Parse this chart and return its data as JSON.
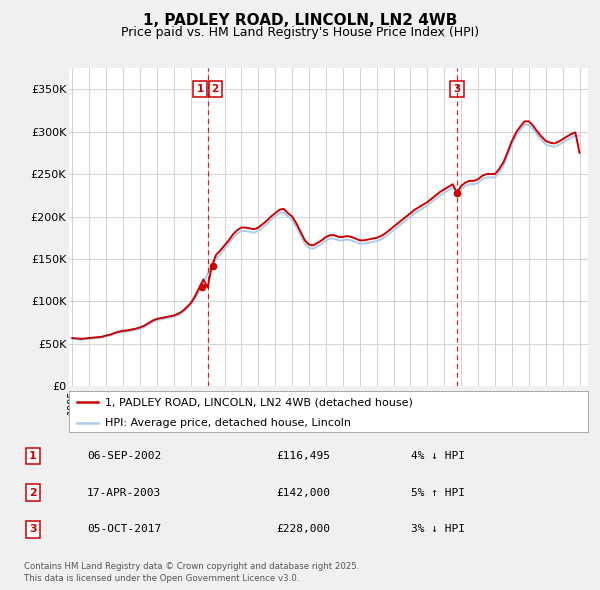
{
  "title": "1, PADLEY ROAD, LINCOLN, LN2 4WB",
  "subtitle": "Price paid vs. HM Land Registry's House Price Index (HPI)",
  "title_fontsize": 11,
  "subtitle_fontsize": 9,
  "bg_color": "#f0f0f0",
  "plot_bg_color": "#ffffff",
  "grid_color": "#cccccc",
  "red_line_color": "#cc0000",
  "blue_line_color": "#aaccee",
  "sale_marker_color": "#cc0000",
  "transaction_line_color": "#cc0000",
  "legend_label_red": "1, PADLEY ROAD, LINCOLN, LN2 4WB (detached house)",
  "legend_label_blue": "HPI: Average price, detached house, Lincoln",
  "transactions": [
    {
      "num": 1,
      "date": "06-SEP-2002",
      "price": 116495,
      "pct": "4%",
      "dir": "↓",
      "year_x": 2002.69
    },
    {
      "num": 2,
      "date": "17-APR-2003",
      "price": 142000,
      "pct": "5%",
      "dir": "↑",
      "year_x": 2003.3
    },
    {
      "num": 3,
      "date": "05-OCT-2017",
      "price": 228000,
      "pct": "3%",
      "dir": "↓",
      "year_x": 2017.75
    }
  ],
  "vlines": [
    {
      "x": 2003.0,
      "nums": [
        1,
        2
      ]
    },
    {
      "x": 2017.75,
      "nums": [
        3
      ]
    }
  ],
  "ylim": [
    0,
    375000
  ],
  "xlim_start": 1994.8,
  "xlim_end": 2025.5,
  "yticks": [
    0,
    50000,
    100000,
    150000,
    200000,
    250000,
    300000,
    350000
  ],
  "ytick_labels": [
    "£0",
    "£50K",
    "£100K",
    "£150K",
    "£200K",
    "£250K",
    "£300K",
    "£350K"
  ],
  "xtick_years": [
    1995,
    1996,
    1997,
    1998,
    1999,
    2000,
    2001,
    2002,
    2003,
    2004,
    2005,
    2006,
    2007,
    2008,
    2009,
    2010,
    2011,
    2012,
    2013,
    2014,
    2015,
    2016,
    2017,
    2018,
    2019,
    2020,
    2021,
    2022,
    2023,
    2024,
    2025
  ],
  "footer": "Contains HM Land Registry data © Crown copyright and database right 2025.\nThis data is licensed under the Open Government Licence v3.0.",
  "hpi_data": {
    "years": [
      1995.0,
      1995.25,
      1995.5,
      1995.75,
      1996.0,
      1996.25,
      1996.5,
      1996.75,
      1997.0,
      1997.25,
      1997.5,
      1997.75,
      1998.0,
      1998.25,
      1998.5,
      1998.75,
      1999.0,
      1999.25,
      1999.5,
      1999.75,
      2000.0,
      2000.25,
      2000.5,
      2000.75,
      2001.0,
      2001.25,
      2001.5,
      2001.75,
      2002.0,
      2002.25,
      2002.5,
      2002.75,
      2003.0,
      2003.25,
      2003.5,
      2003.75,
      2004.0,
      2004.25,
      2004.5,
      2004.75,
      2005.0,
      2005.25,
      2005.5,
      2005.75,
      2006.0,
      2006.25,
      2006.5,
      2006.75,
      2007.0,
      2007.25,
      2007.5,
      2007.75,
      2008.0,
      2008.25,
      2008.5,
      2008.75,
      2009.0,
      2009.25,
      2009.5,
      2009.75,
      2010.0,
      2010.25,
      2010.5,
      2010.75,
      2011.0,
      2011.25,
      2011.5,
      2011.75,
      2012.0,
      2012.25,
      2012.5,
      2012.75,
      2013.0,
      2013.25,
      2013.5,
      2013.75,
      2014.0,
      2014.25,
      2014.5,
      2014.75,
      2015.0,
      2015.25,
      2015.5,
      2015.75,
      2016.0,
      2016.25,
      2016.5,
      2016.75,
      2017.0,
      2017.25,
      2017.5,
      2017.75,
      2018.0,
      2018.25,
      2018.5,
      2018.75,
      2019.0,
      2019.25,
      2019.5,
      2019.75,
      2020.0,
      2020.25,
      2020.5,
      2020.75,
      2021.0,
      2021.25,
      2021.5,
      2021.75,
      2022.0,
      2022.25,
      2022.5,
      2022.75,
      2023.0,
      2023.25,
      2023.5,
      2023.75,
      2024.0,
      2024.25,
      2024.5,
      2024.75,
      2025.0
    ],
    "hpi_values": [
      56000,
      55500,
      55000,
      55500,
      56000,
      56500,
      57000,
      57500,
      59000,
      60000,
      62000,
      63000,
      64000,
      64500,
      65500,
      66500,
      68000,
      70000,
      73000,
      76000,
      78000,
      79000,
      80000,
      81000,
      82000,
      84000,
      87000,
      91000,
      96000,
      103000,
      112000,
      122000,
      133000,
      142000,
      150000,
      156000,
      162000,
      168000,
      175000,
      180000,
      183000,
      183000,
      182000,
      181000,
      183000,
      187000,
      191000,
      196000,
      200000,
      204000,
      205000,
      200000,
      196000,
      188000,
      178000,
      168000,
      163000,
      162000,
      165000,
      168000,
      172000,
      174000,
      174000,
      172000,
      172000,
      173000,
      172000,
      170000,
      168000,
      168000,
      169000,
      170000,
      171000,
      173000,
      176000,
      180000,
      184000,
      188000,
      192000,
      196000,
      200000,
      204000,
      207000,
      210000,
      213000,
      217000,
      221000,
      225000,
      228000,
      231000,
      234000,
      228000,
      232000,
      236000,
      238000,
      238000,
      240000,
      244000,
      246000,
      246000,
      246000,
      252000,
      260000,
      272000,
      285000,
      295000,
      302000,
      308000,
      308000,
      303000,
      296000,
      290000,
      285000,
      283000,
      282000,
      284000,
      287000,
      290000,
      293000,
      295000,
      295000
    ],
    "red_values": [
      57000,
      56500,
      56000,
      56500,
      57000,
      57500,
      58000,
      58500,
      60000,
      61000,
      63000,
      64500,
      65500,
      66000,
      67000,
      68000,
      69500,
      71500,
      74500,
      77500,
      79500,
      80500,
      81500,
      82500,
      83500,
      85500,
      88500,
      93000,
      98000,
      106000,
      116000,
      126000,
      116495,
      142000,
      155000,
      160000,
      166000,
      172000,
      179000,
      184000,
      187000,
      187000,
      186000,
      185000,
      187000,
      191000,
      195000,
      200000,
      204000,
      208000,
      209000,
      204000,
      200000,
      192000,
      182000,
      172000,
      167000,
      166000,
      169000,
      172000,
      176000,
      178000,
      178000,
      176000,
      176000,
      177000,
      176000,
      174000,
      172000,
      172000,
      173000,
      174000,
      175000,
      177000,
      180000,
      184000,
      188000,
      192000,
      196000,
      200000,
      204000,
      208000,
      211000,
      214000,
      217000,
      221000,
      225000,
      229000,
      232000,
      235000,
      238000,
      228000,
      236000,
      240000,
      242000,
      242000,
      244000,
      248000,
      250000,
      250000,
      250000,
      256000,
      264000,
      276000,
      289000,
      299000,
      306000,
      312000,
      312000,
      307000,
      300000,
      294000,
      289000,
      287000,
      286000,
      288000,
      291000,
      294000,
      297000,
      299000,
      275000
    ]
  }
}
